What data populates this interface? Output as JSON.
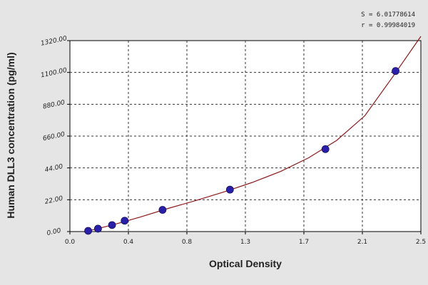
{
  "chart_data": {
    "type": "scatter",
    "title": "",
    "xlabel": "Optical Density",
    "ylabel": "Human DLL3 concentration (pg/ml)",
    "xlim": [
      0.0,
      2.5
    ],
    "ylim": [
      0.0,
      1320.0
    ],
    "x_tick_labels": [
      "0.0",
      "0.4",
      "0.8",
      "1.3",
      "1.7",
      "2.1",
      "2.5"
    ],
    "y_tick_labels": [
      "0.00",
      "22.00",
      "44.00",
      "660.00",
      "880.00",
      "1100.00",
      "1320.00"
    ],
    "grid": true,
    "fit_stats": [
      "S = 6.01778614",
      "r = 0.99984019"
    ],
    "series": [
      {
        "x": [
          0.13,
          0.2,
          0.3,
          0.39,
          0.66,
          1.14,
          1.82,
          2.32
        ],
        "y": [
          5,
          20,
          45,
          75,
          150,
          290,
          570,
          1110
        ],
        "marker_color": "#2a1fa8"
      }
    ],
    "fit_curve": {
      "color": "#8b1a1a",
      "x": [
        0.1,
        0.3,
        0.5,
        0.7,
        0.9,
        1.1,
        1.3,
        1.5,
        1.7,
        1.9,
        2.1,
        2.3,
        2.5
      ],
      "y": [
        -3,
        45,
        100,
        160,
        215,
        275,
        340,
        415,
        510,
        630,
        800,
        1070,
        1380
      ]
    }
  }
}
